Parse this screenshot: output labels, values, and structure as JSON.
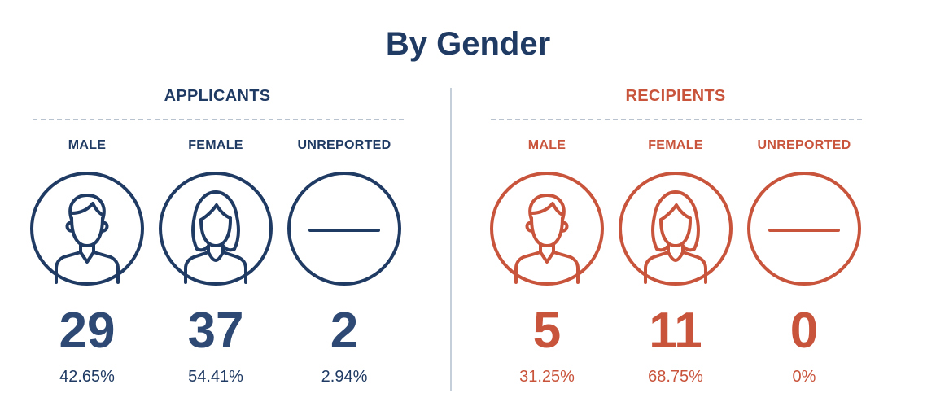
{
  "title": "By Gender",
  "colors": {
    "navy": "#1f3a63",
    "red": "#c9543c"
  },
  "applicants": {
    "header": "APPLICANTS",
    "columns": [
      {
        "label": "MALE",
        "icon": "male-person-icon",
        "count": "29",
        "percent": "42.65%"
      },
      {
        "label": "FEMALE",
        "icon": "female-person-icon",
        "count": "37",
        "percent": "54.41%"
      },
      {
        "label": "UNREPORTED",
        "icon": "dash-icon",
        "count": "2",
        "percent": "2.94%"
      }
    ]
  },
  "recipients": {
    "header": "RECIPIENTS",
    "columns": [
      {
        "label": "MALE",
        "icon": "male-person-icon",
        "count": "5",
        "percent": "31.25%"
      },
      {
        "label": "FEMALE",
        "icon": "female-person-icon",
        "count": "11",
        "percent": "68.75%"
      },
      {
        "label": "UNREPORTED",
        "icon": "dash-icon",
        "count": "0",
        "percent": "0%"
      }
    ]
  }
}
